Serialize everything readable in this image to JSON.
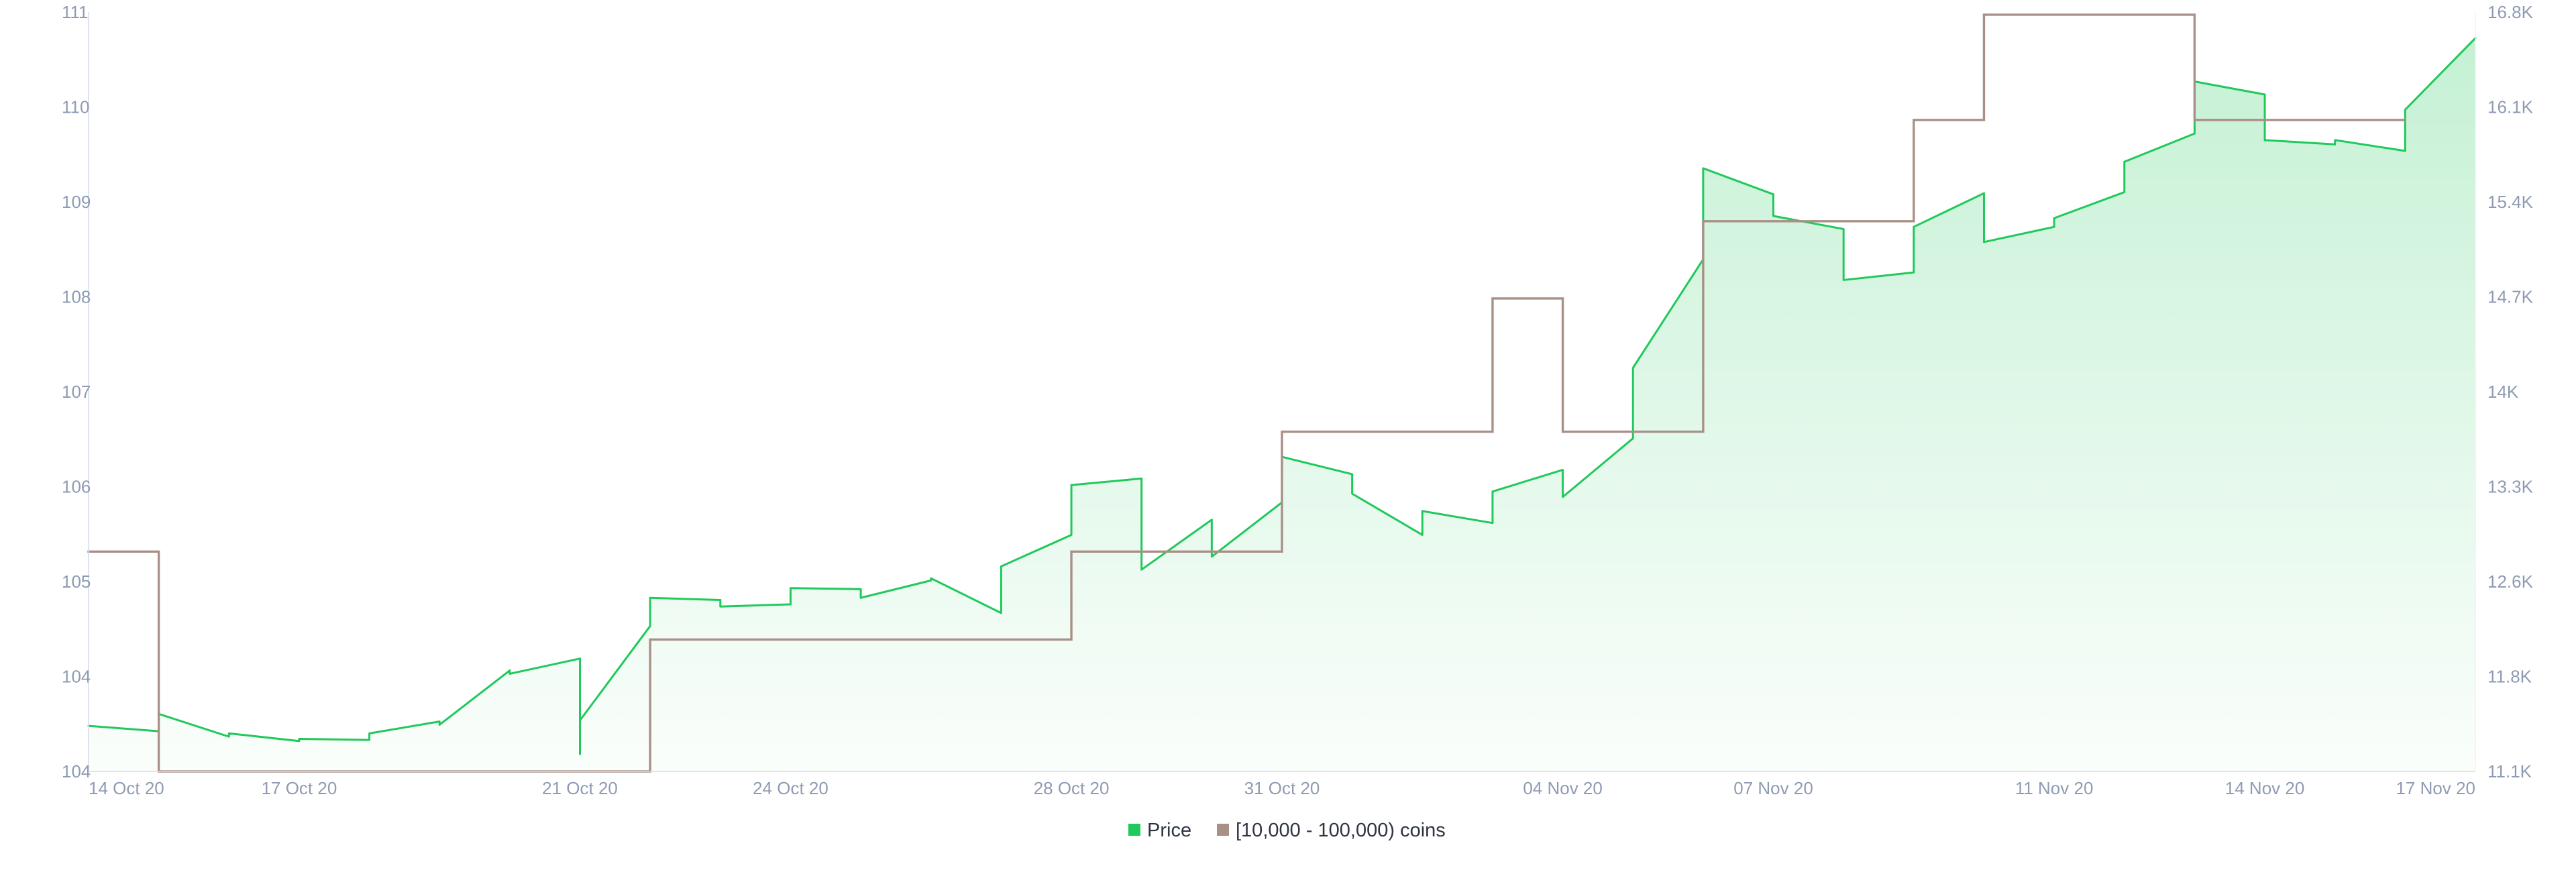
{
  "chart_data": {
    "type": "area",
    "x_axis": {
      "type": "date",
      "ticks": [
        "14 Oct 20",
        "17 Oct 20",
        "21 Oct 20",
        "24 Oct 20",
        "28 Oct 20",
        "31 Oct 20",
        "04 Nov 20",
        "07 Nov 20",
        "11 Nov 20",
        "14 Nov 20",
        "17 Nov 20"
      ]
    },
    "y_left": {
      "ylim": [
        104,
        111
      ],
      "ticks": [
        "104",
        "104",
        "105",
        "106",
        "107",
        "108",
        "109",
        "110",
        "111"
      ]
    },
    "y_right": {
      "ylim": [
        11100,
        16800
      ],
      "ticks": [
        "11.1K",
        "11.8K",
        "12.6K",
        "13.3K",
        "14K",
        "14.7K",
        "15.4K",
        "16.1K",
        "16.8K"
      ]
    },
    "grid": false,
    "legend_position": "bottom-center",
    "series": [
      {
        "name": "Price",
        "type": "area",
        "axis": "left",
        "color": "#20c95b",
        "points": [
          [
            "14 Oct 20",
            104.42
          ],
          [
            "15 Oct 20",
            104.37
          ],
          [
            "15 Oct 20",
            104.53
          ],
          [
            "16 Oct 20",
            104.32
          ],
          [
            "16 Oct 20",
            104.35
          ],
          [
            "17 Oct 20",
            104.28
          ],
          [
            "17 Oct 20",
            104.3
          ],
          [
            "18 Oct 20",
            104.29
          ],
          [
            "18 Oct 20",
            104.35
          ],
          [
            "19 Oct 20",
            104.46
          ],
          [
            "19 Oct 20",
            104.43
          ],
          [
            "20 Oct 20",
            104.93
          ],
          [
            "20 Oct 20",
            104.9
          ],
          [
            "21 Oct 20",
            105.04
          ],
          [
            "21 Oct 20",
            104.16
          ],
          [
            "21 Oct 20",
            104.47
          ],
          [
            "22 Oct 20",
            105.34
          ],
          [
            "22 Oct 20",
            105.6
          ],
          [
            "23 Oct 20",
            105.58
          ],
          [
            "23 Oct 20",
            105.52
          ],
          [
            "24 Oct 20",
            105.54
          ],
          [
            "24 Oct 20",
            105.69
          ],
          [
            "25 Oct 20",
            105.68
          ],
          [
            "25 Oct 20",
            105.6
          ],
          [
            "26 Oct 20",
            105.76
          ],
          [
            "26 Oct 20",
            105.78
          ],
          [
            "27 Oct 20",
            105.46
          ],
          [
            "27 Oct 20",
            105.89
          ],
          [
            "28 Oct 20",
            106.18
          ],
          [
            "28 Oct 20",
            106.64
          ],
          [
            "29 Oct 20",
            106.7
          ],
          [
            "29 Oct 20",
            105.86
          ],
          [
            "30 Oct 20",
            106.32
          ],
          [
            "30 Oct 20",
            105.98
          ],
          [
            "31 Oct 20",
            106.48
          ],
          [
            "31 Oct 20",
            106.9
          ],
          [
            "01 Nov 20",
            106.74
          ],
          [
            "01 Nov 20",
            106.56
          ],
          [
            "02 Nov 20",
            106.18
          ],
          [
            "02 Nov 20",
            106.4
          ],
          [
            "03 Nov 20",
            106.29
          ],
          [
            "03 Nov 20",
            106.58
          ],
          [
            "04 Nov 20",
            106.78
          ],
          [
            "04 Nov 20",
            106.53
          ],
          [
            "05 Nov 20",
            107.07
          ],
          [
            "05 Nov 20",
            107.72
          ],
          [
            "06 Nov 20",
            108.72
          ],
          [
            "06 Nov 20",
            109.56
          ],
          [
            "07 Nov 20",
            109.32
          ],
          [
            "07 Nov 20",
            109.12
          ],
          [
            "08 Nov 20",
            109.0
          ],
          [
            "08 Nov 20",
            108.53
          ],
          [
            "09 Nov 20",
            108.6
          ],
          [
            "09 Nov 20",
            109.02
          ],
          [
            "10 Nov 20",
            109.33
          ],
          [
            "10 Nov 20",
            108.88
          ],
          [
            "11 Nov 20",
            109.02
          ],
          [
            "11 Nov 20",
            109.1
          ],
          [
            "12 Nov 20",
            109.34
          ],
          [
            "12 Nov 20",
            109.62
          ],
          [
            "13 Nov 20",
            109.88
          ],
          [
            "13 Nov 20",
            110.36
          ],
          [
            "14 Nov 20",
            110.24
          ],
          [
            "14 Nov 20",
            109.82
          ],
          [
            "15 Nov 20",
            109.78
          ],
          [
            "15 Nov 20",
            109.82
          ],
          [
            "16 Nov 20",
            109.72
          ],
          [
            "16 Nov 20",
            110.1
          ],
          [
            "17 Nov 20",
            110.76
          ]
        ]
      },
      {
        "name": "[10,000 - 100,000) coins",
        "type": "step",
        "axis": "right",
        "color": "#a89087",
        "points": [
          [
            "14 Oct 20",
            12750
          ],
          [
            "15 Oct 20",
            12750
          ],
          [
            "15 Oct 20",
            11100
          ],
          [
            "22 Oct 20",
            11100
          ],
          [
            "22 Oct 20",
            12090
          ],
          [
            "28 Oct 20",
            12090
          ],
          [
            "28 Oct 20",
            12750
          ],
          [
            "31 Oct 20",
            12750
          ],
          [
            "31 Oct 20",
            13650
          ],
          [
            "03 Nov 20",
            13650
          ],
          [
            "03 Nov 20",
            14650
          ],
          [
            "04 Nov 20",
            14650
          ],
          [
            "04 Nov 20",
            13650
          ],
          [
            "06 Nov 20",
            13650
          ],
          [
            "06 Nov 20",
            15230
          ],
          [
            "09 Nov 20",
            15230
          ],
          [
            "09 Nov 20",
            15990
          ],
          [
            "10 Nov 20",
            15990
          ],
          [
            "10 Nov 20",
            16780
          ],
          [
            "13 Nov 20",
            16780
          ],
          [
            "13 Nov 20",
            15990
          ],
          [
            "16 Nov 20",
            15990
          ]
        ]
      }
    ]
  },
  "legend": [
    {
      "name": "Price",
      "color": "#20c95b"
    },
    {
      "name": "[10,000 - 100,000) coins",
      "color": "#a89087"
    }
  ]
}
